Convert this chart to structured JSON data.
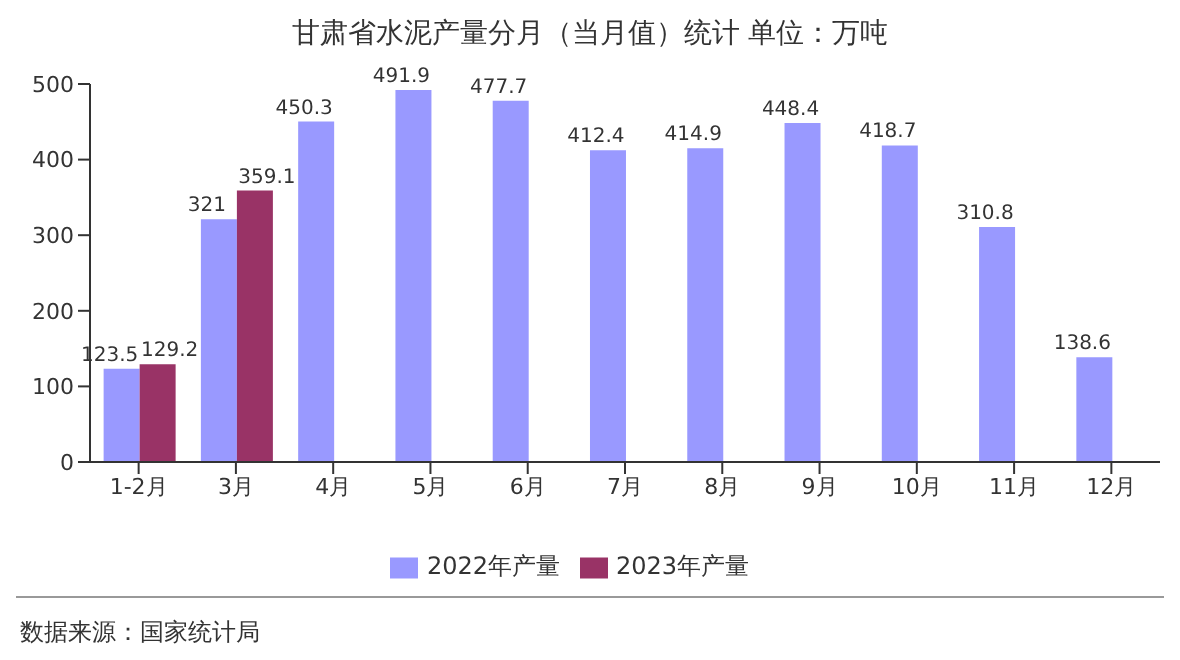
{
  "chart_data": {
    "type": "bar",
    "title": "甘肃省水泥产量分月（当月值）统计  单位：万吨",
    "categories": [
      "1-2月",
      "3月",
      "4月",
      "5月",
      "6月",
      "7月",
      "8月",
      "9月",
      "10月",
      "11月",
      "12月"
    ],
    "series": [
      {
        "name": "2022年产量",
        "color": "#9999ff",
        "values": [
          123.5,
          321,
          450.3,
          491.9,
          477.7,
          412.4,
          414.9,
          448.4,
          418.7,
          310.8,
          138.6
        ]
      },
      {
        "name": "2023年产量",
        "color": "#993366",
        "values": [
          129.2,
          359.1,
          null,
          null,
          null,
          null,
          null,
          null,
          null,
          null,
          null
        ]
      }
    ],
    "ylim": [
      0,
      500
    ],
    "yticks": [
      0,
      100,
      200,
      300,
      400,
      500
    ],
    "grid": false,
    "legend": "bottom",
    "data_labels": true,
    "annotations": [
      "数据来源：国家统计局"
    ]
  }
}
